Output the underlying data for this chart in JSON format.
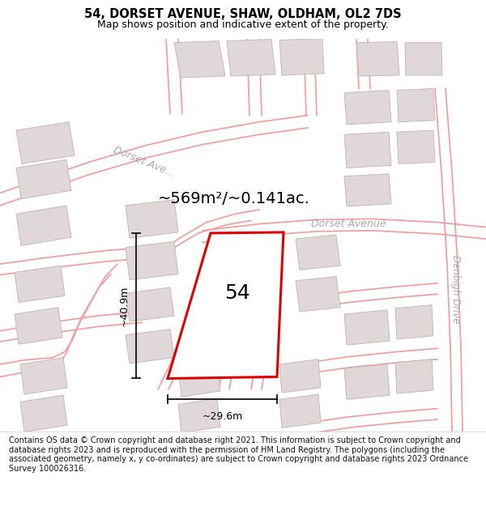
{
  "title": "54, DORSET AVENUE, SHAW, OLDHAM, OL2 7DS",
  "subtitle": "Map shows position and indicative extent of the property.",
  "area_text": "~569m²/~0.141ac.",
  "label_54": "54",
  "dim_h": "~40.9m",
  "dim_w": "~29.6m",
  "street_dorset_diag": "Dorset Ave...",
  "street_dorset_h": "Dorset Avenue",
  "street_denbigh": "Denbigh Drive",
  "footer": "Contains OS data © Crown copyright and database right 2021. This information is subject to Crown copyright and database rights 2023 and is reproduced with the permission of HM Land Registry. The polygons (including the associated geometry, namely x, y co-ordinates) are subject to Crown copyright and database rights 2023 Ordnance Survey 100026316.",
  "bg_color": "#ffffff",
  "map_bg": "#f9f6f6",
  "plot_outline_color": "#dd0000",
  "building_fill": "#e0d8d8",
  "building_edge": "#c8b8b8",
  "road_line_color": "#f0a0a0",
  "dim_line_color": "#111111",
  "street_label_color": "#aaaaaa",
  "title_fontsize": 10.5,
  "subtitle_fontsize": 9,
  "area_fontsize": 14,
  "label_fontsize": 18,
  "footer_fontsize": 7.0
}
